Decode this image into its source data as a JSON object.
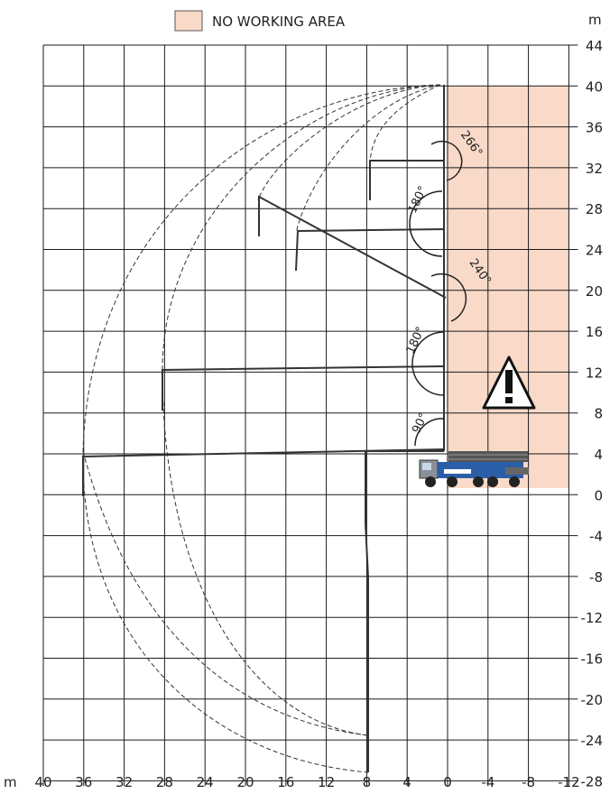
{
  "legend": {
    "label": "NO WORKING AREA",
    "swatch_color": "#f9d9c8"
  },
  "unit_label": "m",
  "x_axis": {
    "unit": "m",
    "ticks": [
      "40",
      "36",
      "32",
      "28",
      "24",
      "20",
      "16",
      "12",
      "8",
      "4",
      "0",
      "-4",
      "-8",
      "-12"
    ]
  },
  "y_axis": {
    "unit": "m",
    "ticks": [
      "44",
      "40",
      "36",
      "32",
      "28",
      "24",
      "20",
      "16",
      "12",
      "8",
      "4",
      "0",
      "-4",
      "-8",
      "-12",
      "-16",
      "-20",
      "-24",
      "-28"
    ]
  },
  "angles": [
    "266°",
    "180°",
    "240°",
    "180°",
    "90°"
  ],
  "colors": {
    "grid": "#1a1a1a",
    "zone": "#f9d9c8",
    "truck": "#2a5fa8",
    "boom": "#333333"
  },
  "warning_icon": "warning-triangle-icon",
  "no_working_zone": {
    "x_from": 0,
    "x_to": -12,
    "y_from": 0,
    "y_to": 40
  }
}
